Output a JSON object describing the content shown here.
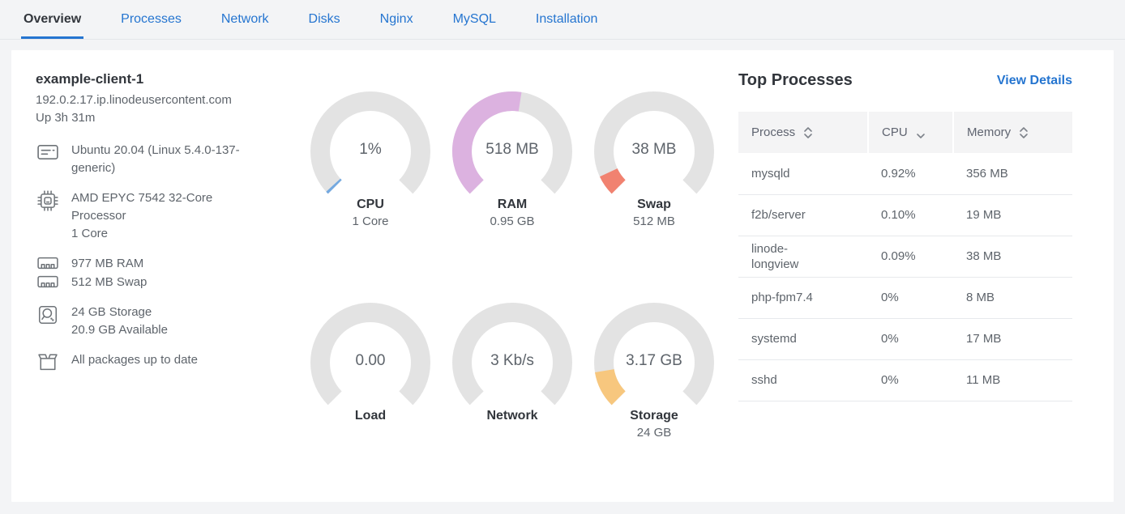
{
  "colors": {
    "accent": "#2575d0",
    "gauge_track": "#e3e3e3",
    "cpu_arc": "#74a9e0",
    "ram_arc": "#dcb2e0",
    "swap_arc": "#f18270",
    "storage_arc": "#f7c77e"
  },
  "tabs": {
    "items": [
      {
        "label": "Overview",
        "active": true
      },
      {
        "label": "Processes",
        "active": false
      },
      {
        "label": "Network",
        "active": false
      },
      {
        "label": "Disks",
        "active": false
      },
      {
        "label": "Nginx",
        "active": false
      },
      {
        "label": "MySQL",
        "active": false
      },
      {
        "label": "Installation",
        "active": false
      }
    ]
  },
  "system": {
    "title": "example-client-1",
    "hostname": "192.0.2.17.ip.linodeusercontent.com",
    "uptime": "Up 3h 31m",
    "os": "Ubuntu 20.04 (Linux 5.4.0-137-generic)",
    "cpu_model": "AMD EPYC 7542 32-Core Processor",
    "cpu_cores": "1 Core",
    "ram": "977 MB RAM",
    "swap": "512 MB Swap",
    "storage": "24 GB Storage",
    "storage_available": "20.9 GB Available",
    "packages": "All packages up to date"
  },
  "gauges": [
    {
      "key": "cpu",
      "value": "1%",
      "label": "CPU",
      "sublabel": "1 Core",
      "percent": 1,
      "color": "#74a9e0"
    },
    {
      "key": "ram",
      "value": "518 MB",
      "label": "RAM",
      "sublabel": "0.95 GB",
      "percent": 53.3,
      "color": "#dcb2e0"
    },
    {
      "key": "swap",
      "value": "38 MB",
      "label": "Swap",
      "sublabel": "512 MB",
      "percent": 7.4,
      "color": "#f18270"
    },
    {
      "key": "load",
      "value": "0.00",
      "label": "Load",
      "sublabel": "",
      "percent": 0,
      "color": "#e3e3e3"
    },
    {
      "key": "network",
      "value": "3 Kb/s",
      "label": "Network",
      "sublabel": "",
      "percent": 0,
      "color": "#e3e3e3"
    },
    {
      "key": "storage",
      "value": "3.17 GB",
      "label": "Storage",
      "sublabel": "24 GB",
      "percent": 13.2,
      "color": "#f7c77e"
    }
  ],
  "top_processes": {
    "title": "Top Processes",
    "view_details": "View Details",
    "columns": [
      {
        "label": "Process",
        "sort": "both"
      },
      {
        "label": "CPU",
        "sort": "desc"
      },
      {
        "label": "Memory",
        "sort": "both"
      }
    ],
    "rows": [
      {
        "process": "mysqld",
        "cpu": "0.92%",
        "memory": "356 MB"
      },
      {
        "process": "f2b/server",
        "cpu": "0.10%",
        "memory": "19 MB"
      },
      {
        "process": "linode-longview",
        "cpu": "0.09%",
        "memory": "38 MB"
      },
      {
        "process": "php-fpm7.4",
        "cpu": "0%",
        "memory": "8 MB"
      },
      {
        "process": "systemd",
        "cpu": "0%",
        "memory": "17 MB"
      },
      {
        "process": "sshd",
        "cpu": "0%",
        "memory": "11 MB"
      }
    ]
  }
}
